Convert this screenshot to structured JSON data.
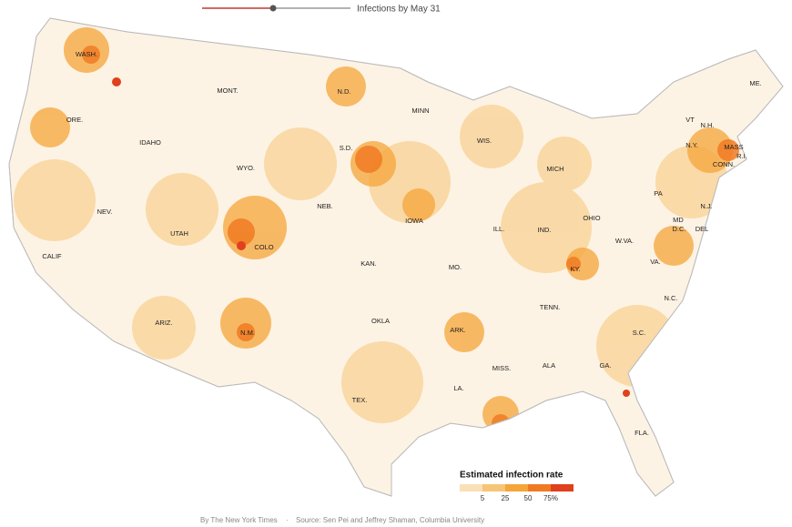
{
  "slider": {
    "label": "Infections by May 31"
  },
  "states": [
    "WASH.",
    "ORE.",
    "IDAHO",
    "MONT.",
    "WYO.",
    "NEV.",
    "UTAH",
    "COLO",
    "CALIF",
    "ARIZ.",
    "N.M.",
    "N.D.",
    "S.D.",
    "NEB.",
    "KAN.",
    "OKLA",
    "TEX.",
    "MINN",
    "IOWA",
    "MO.",
    "ARK.",
    "LA.",
    "WIS.",
    "ILL.",
    "MICH",
    "IND.",
    "OHIO",
    "KY.",
    "TENN.",
    "MISS.",
    "ALA",
    "GA.",
    "FLA.",
    "S.C.",
    "N.C.",
    "VA.",
    "W.VA.",
    "PA",
    "N.Y.",
    "VT",
    "N.H.",
    "ME.",
    "MASS",
    "R.I.",
    "CONN.",
    "N.J.",
    "DEL",
    "MD",
    "D.C."
  ],
  "legend": {
    "title": "Estimated infection rate",
    "ticks": [
      "5",
      "25",
      "50",
      "75%"
    ]
  },
  "credits": {
    "byline": "By The New York Times",
    "separator": "·",
    "source": "Source: Sen Pei and Jeffrey Shaman, Columbia University"
  }
}
